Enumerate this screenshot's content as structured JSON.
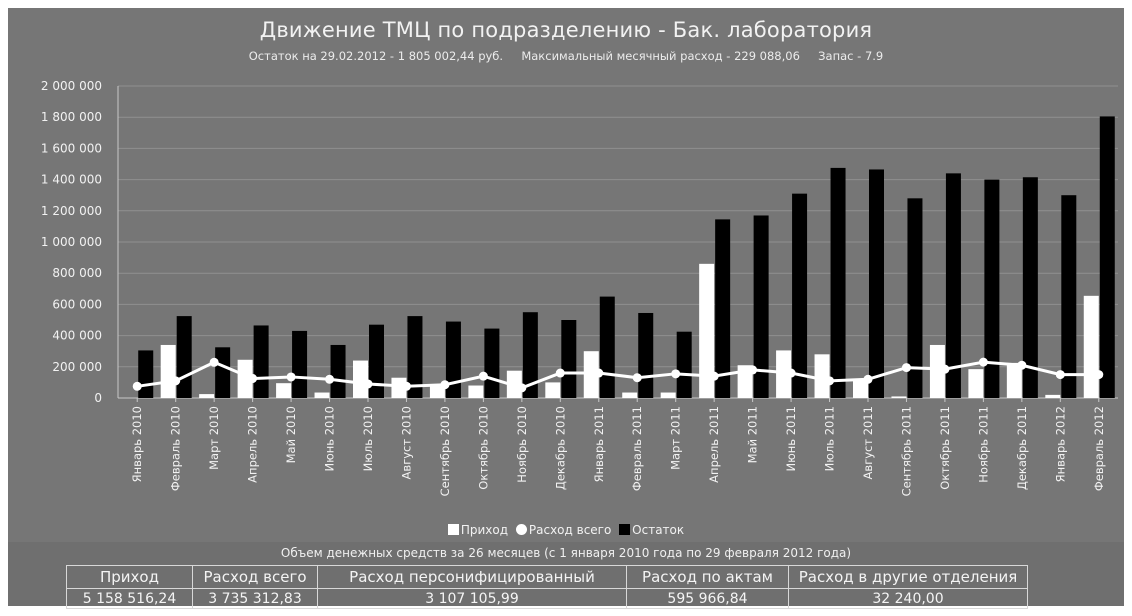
{
  "chart_data": {
    "type": "bar",
    "title": "Движение ТМЦ по подразделению - Бак. лаборатория",
    "subtitle": "Остаток на 29.02.2012 - 1 805 002,44 руб.     Максимальный месячный расход - 229 088,06     Запас - 7.9",
    "xlabel": "",
    "ylabel": "",
    "ylim": [
      0,
      2000000
    ],
    "yticks": [
      0,
      200000,
      400000,
      600000,
      800000,
      1000000,
      1200000,
      1400000,
      1600000,
      1800000,
      2000000
    ],
    "ytick_labels": [
      "0",
      "200 000",
      "400 000",
      "600 000",
      "800 000",
      "1 000 000",
      "1 200 000",
      "1 400 000",
      "1 600 000",
      "1 800 000",
      "2 000 000"
    ],
    "grid": true,
    "legend_position": "bottom",
    "categories": [
      "Январь 2010",
      "Февраль 2010",
      "Март 2010",
      "Апрель 2010",
      "Май 2010",
      "Июнь 2010",
      "Июль 2010",
      "Август 2010",
      "Сентябрь 2010",
      "Октябрь 2010",
      "Ноябрь 2010",
      "Декабрь 2010",
      "Январь 2011",
      "Февраль 2011",
      "Март 2011",
      "Апрель 2011",
      "Май 2011",
      "Июнь 2011",
      "Июль 2011",
      "Август 2011",
      "Сентябрь 2011",
      "Октябрь 2011",
      "Ноябрь 2011",
      "Декабрь 2011",
      "Январь 2012",
      "Февраль 2012"
    ],
    "series": [
      {
        "name": "Приход",
        "kind": "bar",
        "color": "#ffffff",
        "values": [
          0,
          340000,
          25000,
          245000,
          95000,
          35000,
          240000,
          130000,
          75000,
          80000,
          175000,
          100000,
          300000,
          35000,
          35000,
          860000,
          210000,
          305000,
          280000,
          120000,
          10000,
          340000,
          185000,
          225000,
          20000,
          655000
        ]
      },
      {
        "name": "Расход всего",
        "kind": "line",
        "color": "#ffffff",
        "values": [
          75000,
          110000,
          229088,
          125000,
          135000,
          120000,
          90000,
          75000,
          85000,
          140000,
          65000,
          160000,
          160000,
          130000,
          155000,
          140000,
          180000,
          160000,
          110000,
          120000,
          195000,
          185000,
          230000,
          210000,
          150000,
          150000
        ]
      },
      {
        "name": "Остаток",
        "kind": "bar",
        "color": "#000000",
        "values": [
          305000,
          525000,
          325000,
          465000,
          430000,
          340000,
          470000,
          525000,
          490000,
          445000,
          550000,
          500000,
          650000,
          545000,
          425000,
          1145000,
          1170000,
          1310000,
          1475000,
          1465000,
          1280000,
          1440000,
          1400000,
          1415000,
          1300000,
          1805002.44
        ]
      }
    ]
  },
  "summary": {
    "caption": "Объем денежных средств за 26 месяцев (с 1 января 2010 года по 29 февраля 2012 года)",
    "headers": [
      "Приход",
      "Расход всего",
      "Расход персонифицированный",
      "Расход по актам",
      "Расход в другие отделения"
    ],
    "values": [
      "5 158 516,24",
      "3 735 312,83",
      "3 107 105,99",
      "595 966,84",
      "32 240,00"
    ]
  },
  "colors": {
    "background": "#767676",
    "text": "#f2f2f2",
    "income_bar": "#ffffff",
    "balance_bar": "#000000",
    "expense_line": "#ffffff"
  }
}
